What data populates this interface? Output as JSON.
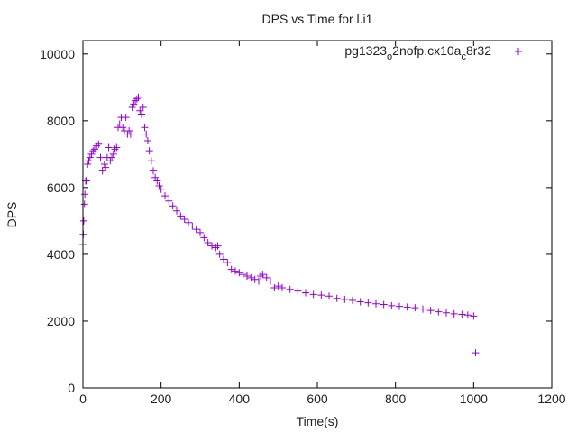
{
  "chart_data": {
    "type": "scatter",
    "title": "DPS vs Time for l.i1",
    "xlabel": "Time(s)",
    "ylabel": "DPS",
    "xlim": [
      0,
      1200
    ],
    "ylim": [
      0,
      10400
    ],
    "xticks": [
      0,
      200,
      400,
      600,
      800,
      1000,
      1200
    ],
    "yticks": [
      0,
      2000,
      4000,
      6000,
      8000,
      10000
    ],
    "grid": false,
    "legend_placement": "top-right",
    "series": [
      {
        "name": "pg1323_o2nofp.cx10a_c8r32",
        "name_parts": [
          "pg1323",
          "o",
          "2nofp.cx10a",
          "c",
          "8r32"
        ],
        "color": "#9400d3",
        "marker": "plus",
        "points": [
          [
            0,
            4300
          ],
          [
            1,
            4600
          ],
          [
            2,
            5000
          ],
          [
            4,
            5500
          ],
          [
            5,
            5800
          ],
          [
            7,
            6200
          ],
          [
            9,
            6200
          ],
          [
            12,
            6700
          ],
          [
            15,
            6800
          ],
          [
            18,
            6900
          ],
          [
            22,
            7000
          ],
          [
            26,
            7100
          ],
          [
            30,
            7150
          ],
          [
            35,
            7250
          ],
          [
            40,
            7300
          ],
          [
            45,
            6900
          ],
          [
            50,
            6500
          ],
          [
            55,
            6700
          ],
          [
            58,
            6600
          ],
          [
            62,
            6900
          ],
          [
            66,
            7200
          ],
          [
            70,
            6800
          ],
          [
            74,
            6900
          ],
          [
            78,
            7000
          ],
          [
            82,
            7150
          ],
          [
            86,
            7200
          ],
          [
            90,
            7800
          ],
          [
            94,
            7900
          ],
          [
            98,
            8100
          ],
          [
            102,
            7800
          ],
          [
            106,
            7700
          ],
          [
            110,
            8100
          ],
          [
            114,
            7600
          ],
          [
            118,
            7700
          ],
          [
            122,
            7600
          ],
          [
            126,
            8400
          ],
          [
            130,
            8500
          ],
          [
            134,
            8600
          ],
          [
            138,
            8650
          ],
          [
            142,
            8700
          ],
          [
            146,
            8300
          ],
          [
            150,
            8200
          ],
          [
            154,
            8400
          ],
          [
            158,
            7800
          ],
          [
            162,
            7600
          ],
          [
            166,
            7400
          ],
          [
            170,
            7100
          ],
          [
            175,
            6800
          ],
          [
            180,
            6500
          ],
          [
            185,
            6300
          ],
          [
            190,
            6200
          ],
          [
            195,
            6050
          ],
          [
            200,
            5950
          ],
          [
            210,
            5750
          ],
          [
            220,
            5600
          ],
          [
            230,
            5450
          ],
          [
            240,
            5300
          ],
          [
            250,
            5150
          ],
          [
            260,
            5050
          ],
          [
            270,
            4950
          ],
          [
            280,
            4850
          ],
          [
            290,
            4750
          ],
          [
            300,
            4650
          ],
          [
            310,
            4500
          ],
          [
            320,
            4350
          ],
          [
            330,
            4250
          ],
          [
            340,
            4200
          ],
          [
            345,
            4250
          ],
          [
            350,
            4000
          ],
          [
            360,
            3850
          ],
          [
            370,
            3750
          ],
          [
            380,
            3550
          ],
          [
            390,
            3500
          ],
          [
            400,
            3450
          ],
          [
            410,
            3400
          ],
          [
            420,
            3350
          ],
          [
            430,
            3300
          ],
          [
            440,
            3250
          ],
          [
            450,
            3200
          ],
          [
            455,
            3350
          ],
          [
            460,
            3400
          ],
          [
            470,
            3300
          ],
          [
            480,
            3200
          ],
          [
            490,
            3000
          ],
          [
            500,
            3050
          ],
          [
            510,
            3000
          ],
          [
            530,
            2950
          ],
          [
            550,
            2900
          ],
          [
            570,
            2850
          ],
          [
            590,
            2800
          ],
          [
            610,
            2780
          ],
          [
            630,
            2750
          ],
          [
            650,
            2680
          ],
          [
            670,
            2650
          ],
          [
            690,
            2620
          ],
          [
            710,
            2580
          ],
          [
            730,
            2550
          ],
          [
            750,
            2520
          ],
          [
            770,
            2500
          ],
          [
            790,
            2460
          ],
          [
            810,
            2440
          ],
          [
            830,
            2420
          ],
          [
            850,
            2400
          ],
          [
            870,
            2360
          ],
          [
            890,
            2320
          ],
          [
            910,
            2280
          ],
          [
            930,
            2250
          ],
          [
            950,
            2220
          ],
          [
            970,
            2200
          ],
          [
            985,
            2180
          ],
          [
            1000,
            2150
          ],
          [
            1005,
            1050
          ]
        ]
      }
    ]
  }
}
